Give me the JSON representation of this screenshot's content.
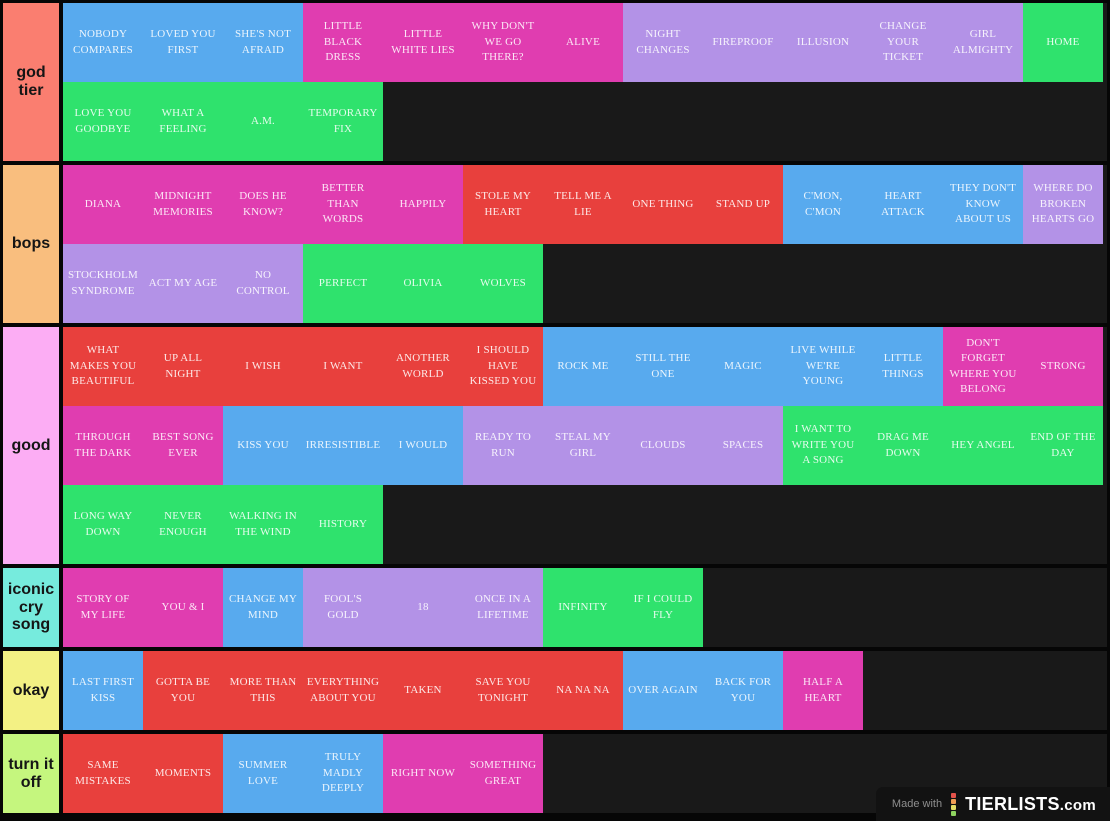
{
  "palette": {
    "blue": "#58aaee",
    "magenta": "#e03db0",
    "red": "#e8403d",
    "purple": "#b392e7",
    "green": "#2fe26d"
  },
  "tiers": [
    {
      "label": "god tier",
      "label_color": "#fa7e70",
      "songs": [
        {
          "title": "NOBODY COMPARES",
          "color": "blue"
        },
        {
          "title": "LOVED YOU FIRST",
          "color": "blue"
        },
        {
          "title": "SHE'S NOT AFRAID",
          "color": "blue"
        },
        {
          "title": "LITTLE BLACK DRESS",
          "color": "magenta"
        },
        {
          "title": "LITTLE WHITE LIES",
          "color": "magenta"
        },
        {
          "title": "WHY DON'T WE GO THERE?",
          "color": "magenta"
        },
        {
          "title": "ALIVE",
          "color": "magenta"
        },
        {
          "title": "NIGHT CHANGES",
          "color": "purple"
        },
        {
          "title": "FIREPROOF",
          "color": "purple"
        },
        {
          "title": "ILLUSION",
          "color": "purple"
        },
        {
          "title": "CHANGE YOUR TICKET",
          "color": "purple"
        },
        {
          "title": "GIRL ALMIGHTY",
          "color": "purple"
        },
        {
          "title": "HOME",
          "color": "green"
        },
        {
          "title": "LOVE YOU GOODBYE",
          "color": "green"
        },
        {
          "title": "WHAT A FEELING",
          "color": "green"
        },
        {
          "title": "A.M.",
          "color": "green"
        },
        {
          "title": "TEMPORARY FIX",
          "color": "green"
        }
      ]
    },
    {
      "label": "bops",
      "label_color": "#f9be7e",
      "songs": [
        {
          "title": "DIANA",
          "color": "magenta"
        },
        {
          "title": "MIDNIGHT MEMORIES",
          "color": "magenta"
        },
        {
          "title": "DOES HE KNOW?",
          "color": "magenta"
        },
        {
          "title": "BETTER THAN WORDS",
          "color": "magenta"
        },
        {
          "title": "HAPPILY",
          "color": "magenta"
        },
        {
          "title": "STOLE MY HEART",
          "color": "red"
        },
        {
          "title": "TELL ME A LIE",
          "color": "red"
        },
        {
          "title": "ONE THING",
          "color": "red"
        },
        {
          "title": "STAND UP",
          "color": "red"
        },
        {
          "title": "C'MON, C'MON",
          "color": "blue"
        },
        {
          "title": "HEART ATTACK",
          "color": "blue"
        },
        {
          "title": "THEY DON'T KNOW ABOUT US",
          "color": "blue"
        },
        {
          "title": "WHERE DO BROKEN HEARTS GO",
          "color": "purple"
        },
        {
          "title": "STOCKHOLM SYNDROME",
          "color": "purple"
        },
        {
          "title": "ACT MY AGE",
          "color": "purple"
        },
        {
          "title": "NO CONTROL",
          "color": "purple"
        },
        {
          "title": "PERFECT",
          "color": "green"
        },
        {
          "title": "OLIVIA",
          "color": "green"
        },
        {
          "title": "WOLVES",
          "color": "green"
        }
      ]
    },
    {
      "label": "good",
      "label_color": "#fcadf4",
      "songs": [
        {
          "title": "WHAT MAKES YOU BEAUTIFUL",
          "color": "red"
        },
        {
          "title": "UP ALL NIGHT",
          "color": "red"
        },
        {
          "title": "I WISH",
          "color": "red"
        },
        {
          "title": "I WANT",
          "color": "red"
        },
        {
          "title": "ANOTHER WORLD",
          "color": "red"
        },
        {
          "title": "I SHOULD HAVE KISSED YOU",
          "color": "red"
        },
        {
          "title": "ROCK ME",
          "color": "blue"
        },
        {
          "title": "STILL THE ONE",
          "color": "blue"
        },
        {
          "title": "MAGIC",
          "color": "blue"
        },
        {
          "title": "LIVE WHILE WE'RE YOUNG",
          "color": "blue"
        },
        {
          "title": "LITTLE THINGS",
          "color": "blue"
        },
        {
          "title": "DON'T FORGET WHERE YOU BELONG",
          "color": "magenta"
        },
        {
          "title": "STRONG",
          "color": "magenta"
        },
        {
          "title": "THROUGH THE DARK",
          "color": "magenta"
        },
        {
          "title": "BEST SONG EVER",
          "color": "magenta"
        },
        {
          "title": "KISS YOU",
          "color": "blue"
        },
        {
          "title": "IRRESISTIBLE",
          "color": "blue"
        },
        {
          "title": "I WOULD",
          "color": "blue"
        },
        {
          "title": "READY TO RUN",
          "color": "purple"
        },
        {
          "title": "STEAL MY GIRL",
          "color": "purple"
        },
        {
          "title": "CLOUDS",
          "color": "purple"
        },
        {
          "title": "SPACES",
          "color": "purple"
        },
        {
          "title": "I WANT TO WRITE YOU A SONG",
          "color": "green"
        },
        {
          "title": "DRAG ME DOWN",
          "color": "green"
        },
        {
          "title": "HEY ANGEL",
          "color": "green"
        },
        {
          "title": "END OF THE DAY",
          "color": "green"
        },
        {
          "title": "LONG WAY DOWN",
          "color": "green"
        },
        {
          "title": "NEVER ENOUGH",
          "color": "green"
        },
        {
          "title": "WALKING IN THE WIND",
          "color": "green"
        },
        {
          "title": "HISTORY",
          "color": "green"
        }
      ]
    },
    {
      "label": "iconic cry song",
      "label_color": "#76ebdd",
      "songs": [
        {
          "title": "STORY OF MY LIFE",
          "color": "magenta"
        },
        {
          "title": "YOU & I",
          "color": "magenta"
        },
        {
          "title": "CHANGE MY MIND",
          "color": "blue"
        },
        {
          "title": "FOOL'S GOLD",
          "color": "purple"
        },
        {
          "title": "18",
          "color": "purple"
        },
        {
          "title": "ONCE IN A LIFETIME",
          "color": "purple"
        },
        {
          "title": "INFINITY",
          "color": "green"
        },
        {
          "title": "IF I COULD FLY",
          "color": "green"
        }
      ]
    },
    {
      "label": "okay",
      "label_color": "#f3f184",
      "songs": [
        {
          "title": "LAST FIRST KISS",
          "color": "blue"
        },
        {
          "title": "GOTTA BE YOU",
          "color": "red"
        },
        {
          "title": "MORE THAN THIS",
          "color": "red"
        },
        {
          "title": "EVERYTHING ABOUT YOU",
          "color": "red"
        },
        {
          "title": "TAKEN",
          "color": "red"
        },
        {
          "title": "SAVE YOU TONIGHT",
          "color": "red"
        },
        {
          "title": "NA NA NA",
          "color": "red"
        },
        {
          "title": "OVER AGAIN",
          "color": "blue"
        },
        {
          "title": "BACK FOR YOU",
          "color": "blue"
        },
        {
          "title": "HALF A HEART",
          "color": "magenta"
        }
      ]
    },
    {
      "label": "turn it off",
      "label_color": "#c5f67e",
      "songs": [
        {
          "title": "SAME MISTAKES",
          "color": "red"
        },
        {
          "title": "MOMENTS",
          "color": "red"
        },
        {
          "title": "SUMMER LOVE",
          "color": "blue"
        },
        {
          "title": "TRULY MADLY DEEPLY",
          "color": "blue"
        },
        {
          "title": "RIGHT NOW",
          "color": "magenta"
        },
        {
          "title": "SOMETHING GREAT",
          "color": "magenta"
        }
      ]
    }
  ],
  "watermark": {
    "made_with": "Made with",
    "brand": "TIERLISTS",
    "domain": ".com",
    "logo_colors": [
      "#e5534b",
      "#ef9d54",
      "#e4dd66",
      "#8ed35f"
    ]
  }
}
